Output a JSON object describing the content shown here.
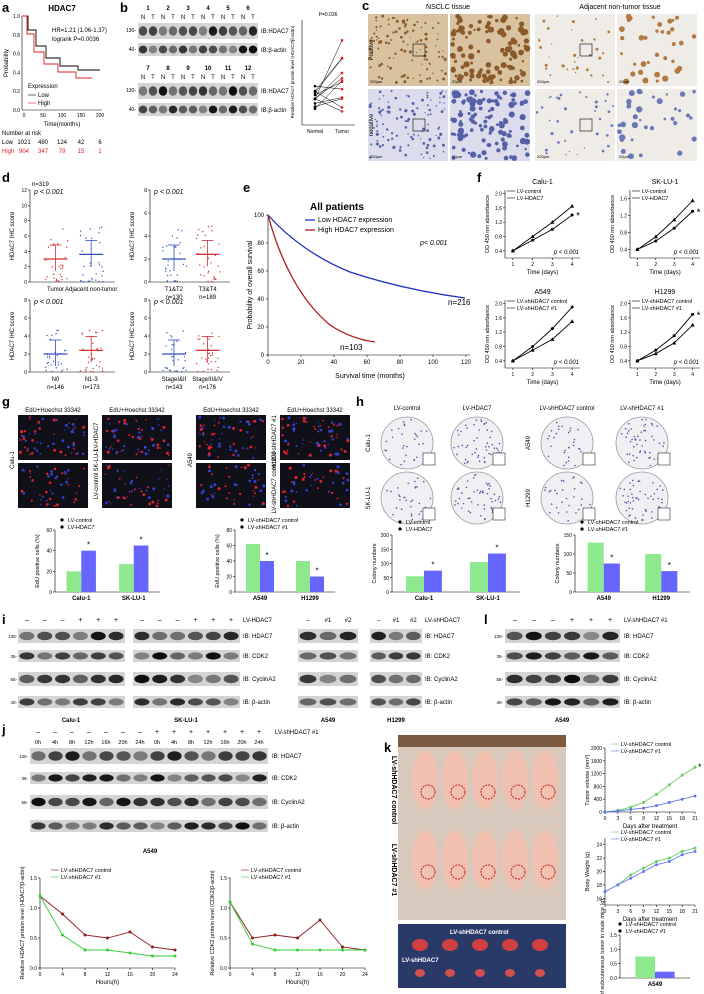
{
  "a": {
    "label": "a",
    "title": "HDAC7",
    "hr": "HR=1.21 (1.06-1.37)",
    "logrank": "logrank P=0.0036",
    "ylabel": "Probability",
    "xlabel": "Time(months)",
    "legend_title": "Expression",
    "legend": [
      "Low",
      "High"
    ],
    "xticks": [
      "0",
      "50",
      "100",
      "150",
      "200"
    ],
    "yticks": [
      "0.0",
      "0.2",
      "0.4",
      "0.6",
      "0.8",
      "1.0"
    ],
    "risk_title": "Number at risk",
    "risk": [
      [
        "Low",
        "1021",
        "480",
        "124",
        "42",
        "6"
      ],
      [
        "High",
        "904",
        "347",
        "79",
        "15",
        "1"
      ]
    ]
  },
  "b": {
    "label": "b",
    "lanes": [
      [
        "1",
        "2",
        "3",
        "4",
        "5",
        "6"
      ],
      [
        "7",
        "8",
        "9",
        "10",
        "11",
        "12"
      ]
    ],
    "n": "N",
    "t": "T",
    "mw": [
      "130-",
      "40-"
    ],
    "bands": [
      "IB:HDAC7",
      "IB:β-actin"
    ],
    "p": "P=0.036",
    "ylabel": "Relative HDAC7 protein level (HDAC7/β-actin)",
    "cats": [
      "Normal",
      "Tumor"
    ]
  },
  "c": {
    "label": "c",
    "headers": [
      "NSCLC tissue",
      "Adjacent non-tumor tissue"
    ],
    "rows": [
      "Positive",
      "negative"
    ],
    "scales": [
      "200μm",
      "20μm"
    ]
  },
  "d": {
    "label": "d",
    "ylabel": "HDAC7 IHC score",
    "p": "p < 0.001",
    "n0": "n=319",
    "plots": [
      {
        "yticks": [
          "0",
          "2",
          "4",
          "6",
          "8",
          "10",
          "12"
        ],
        "cats": [
          "Tumor",
          "Adjacent non-tumor"
        ]
      },
      {
        "yticks": [
          "0",
          "2",
          "4",
          "6",
          "8"
        ],
        "cats": [
          "T1&T2",
          "T3&T4"
        ],
        "n": [
          "n=130",
          "n=189"
        ]
      },
      {
        "yticks": [
          "0",
          "2",
          "4",
          "6",
          "8"
        ],
        "cats": [
          "N0",
          "N1-3"
        ],
        "n": [
          "n=146",
          "n=173"
        ]
      },
      {
        "yticks": [
          "0",
          "2",
          "4",
          "6",
          "8"
        ],
        "cats": [
          "StageI&II",
          "StageIII&IV"
        ],
        "n": [
          "n=143",
          "n=176"
        ]
      }
    ]
  },
  "e": {
    "label": "e",
    "title": "All patients",
    "legend": [
      "Low HDAC7 expression",
      "High HDAC7 expression"
    ],
    "p": "p< 0.001",
    "n": [
      "n=216",
      "n=103"
    ],
    "ylabel": "Probability of overall survival",
    "xlabel": "Survival time (months)",
    "xticks": [
      "0",
      "20",
      "40",
      "60",
      "80",
      "100",
      "120"
    ],
    "yticks": [
      "0",
      "20",
      "40",
      "60",
      "80",
      "100"
    ]
  },
  "f": {
    "label": "f",
    "ylabel": "OD 450 nm absorbance",
    "xlabel": "Time (days)",
    "p": "p < 0.001",
    "star": "*",
    "plots": [
      {
        "type": "line",
        "title": "Calu-1",
        "x": [
          1,
          2,
          3,
          4
        ],
        "xlim": [
          0.6,
          4.4
        ],
        "xticks": [
          1,
          2,
          3,
          4
        ],
        "ylim": [
          0.2,
          2.1
        ],
        "yticks": [
          0.4,
          0.8,
          1.2,
          1.6,
          {
            "value": 2,
            "label": "2.0"
          }
        ],
        "series": [
          {
            "name": "LV-control",
            "color": "#000000",
            "marker": "circle",
            "values": [
              0.4,
              0.7,
              1.0,
              1.4
            ]
          },
          {
            "name": "LV-HDAC7",
            "color": "#000000",
            "marker": "triangle",
            "values": [
              0.4,
              0.8,
              1.2,
              1.65
            ]
          }
        ],
        "star": true
      },
      {
        "type": "line",
        "title": "SK-LU-1",
        "x": [
          1,
          2,
          3,
          4
        ],
        "xlim": [
          0.6,
          4.4
        ],
        "xticks": [
          1,
          2,
          3,
          4
        ],
        "ylim": [
          0.2,
          1.8
        ],
        "yticks": [
          0.4,
          0.8,
          1.2,
          1.6
        ],
        "series": [
          {
            "name": "LV-control",
            "color": "#000000",
            "marker": "circle",
            "values": [
              0.4,
              0.6,
              0.9,
              1.3
            ]
          },
          {
            "name": "LV-HDAC7",
            "color": "#000000",
            "marker": "triangle",
            "values": [
              0.4,
              0.7,
              1.1,
              1.55
            ]
          }
        ],
        "star": true
      },
      {
        "type": "line",
        "title": "A549",
        "x": [
          1,
          2,
          3,
          4
        ],
        "xlim": [
          0.6,
          4.4
        ],
        "xticks": [
          1,
          2,
          3,
          4
        ],
        "ylim": [
          0.2,
          2.1
        ],
        "yticks": [
          0.4,
          0.8,
          1.2,
          1.6,
          {
            "value": 2,
            "label": "2.0"
          }
        ],
        "series": [
          {
            "name": "LV-shHDAC7 control",
            "color": "#000000",
            "marker": "circle",
            "values": [
              0.4,
              0.8,
              1.3,
              1.9
            ]
          },
          {
            "name": "LV-shHDAC7 #1",
            "color": "#000000",
            "marker": "triangle",
            "values": [
              0.4,
              0.7,
              1.0,
              1.5
            ]
          }
        ],
        "star": false
      },
      {
        "type": "line",
        "title": "H1299",
        "x": [
          1,
          2,
          3,
          4
        ],
        "xlim": [
          0.6,
          4.4
        ],
        "xticks": [
          1,
          2,
          3,
          4
        ],
        "ylim": [
          0.2,
          2.1
        ],
        "yticks": [
          0.4,
          0.8,
          1.2,
          1.6,
          {
            "value": 2,
            "label": "2.0"
          }
        ],
        "series": [
          {
            "name": "LV-shHDAC7 control",
            "color": "#000000",
            "marker": "circle",
            "values": [
              0.4,
              0.7,
              1.1,
              1.7
            ]
          },
          {
            "name": "LV-shHDAC7 #1",
            "color": "#000000",
            "marker": "triangle",
            "values": [
              0.4,
              0.6,
              0.9,
              1.4
            ]
          }
        ],
        "star": true
      }
    ]
  },
  "g": {
    "label": "g",
    "img_title": "EdU+Hoechst 33342",
    "cells": [
      "Calu-1",
      "SK-LU-1",
      "A549",
      "H1299"
    ],
    "rows": [
      "LV-HDAC7",
      "LV-control",
      "LV-shHDAC7 #1",
      "LV-shHDAC7 control"
    ],
    "ylabel": "EdU positive cells (%)",
    "star": "*",
    "plots": [
      {
        "type": "bar",
        "categories": [
          "Calu-1",
          "SK-LU-1"
        ],
        "ylim": [
          0,
          60
        ],
        "yticks": [
          0,
          20,
          40,
          60
        ],
        "series": [
          {
            "name": "LV-control",
            "color": "#8ee88e",
            "values": [
              20,
              27
            ]
          },
          {
            "name": "LV-HDAC7",
            "color": "#6666ff",
            "values": [
              40,
              45
            ]
          }
        ]
      },
      {
        "type": "bar",
        "categories": [
          "A549",
          "H1299"
        ],
        "ylim": [
          0,
          80
        ],
        "yticks": [
          0,
          20,
          40,
          60,
          80
        ],
        "series": [
          {
            "name": "LV-shHDAC7 control",
            "color": "#8ee88e",
            "values": [
              62,
              40
            ]
          },
          {
            "name": "LV-shHDAC7 #1",
            "color": "#6666ff",
            "values": [
              40,
              20
            ]
          }
        ]
      }
    ]
  },
  "h": {
    "label": "h",
    "headers": [
      "LV-control",
      "LV-HDAC7",
      "LV-shHDAC7 control",
      "LV-shHDAC7 #1"
    ],
    "cells": [
      "Calu-1",
      "SK-LU-1",
      "A549",
      "H1299"
    ],
    "ylabel": "Colony numbers",
    "star": "*",
    "plots": [
      {
        "type": "bar",
        "categories": [
          "Calu-1",
          "SK-LU-1"
        ],
        "ylim": [
          0,
          200
        ],
        "yticks": [
          0,
          50,
          100,
          150,
          200
        ],
        "series": [
          {
            "name": "LV-control",
            "color": "#8ee88e",
            "values": [
              55,
              105
            ]
          },
          {
            "name": "LV-HDAC7",
            "color": "#6666ff",
            "values": [
              75,
              135
            ]
          }
        ]
      },
      {
        "type": "bar",
        "categories": [
          "A549",
          "H1299"
        ],
        "ylim": [
          0,
          150
        ],
        "yticks": [
          0,
          50,
          100,
          150
        ],
        "series": [
          {
            "name": "LV-shHDAC7 control",
            "color": "#8ee88e",
            "values": [
              130,
              100
            ]
          },
          {
            "name": "LV-shHDAC7 #1",
            "color": "#6666ff",
            "values": [
              75,
              55
            ]
          }
        ]
      }
    ]
  },
  "i": {
    "label": "i",
    "headers": [
      "LV-HDAC7",
      "LV-shHDAC7"
    ],
    "signs": [
      "–",
      "+",
      "#1",
      "#2"
    ],
    "bands": [
      "IB: HDAC7",
      "IB: CDK2",
      "IB: CyclinA2",
      "IB: β-actin"
    ],
    "mw": [
      "130-",
      "35-",
      "55-",
      "40-"
    ],
    "cells": [
      "Calu-1",
      "SK-LU-1",
      "A549",
      "H1299"
    ]
  },
  "l": {
    "label": "l",
    "header": "LV-shHDAC7 #1",
    "signs": [
      "–",
      "+"
    ],
    "bands": [
      "IB: HDAC7",
      "IB: CDK2",
      "IB: CyclinA2",
      "IB: β-actin"
    ],
    "mw": [
      "130-",
      "35-",
      "55-",
      "40-"
    ],
    "cell": "A549"
  },
  "j": {
    "label": "j",
    "header": "LV-shHDAC7 #1",
    "signs": [
      "–",
      "+"
    ],
    "times": [
      "0h",
      "4h",
      "8h",
      "12h",
      "16h",
      "20h",
      "24h"
    ],
    "bands": [
      "IB: HDAC7",
      "IB: CDK2",
      "IB: CyclinA2",
      "IB: β-actin"
    ],
    "mw": [
      "130-",
      "35-",
      "55-"
    ],
    "cell": "A549",
    "xlabel": "Hours(h)",
    "plots": [
      {
        "type": "line",
        "ylabel": "Relative HDAC7 protein level (HDAC7/β-actin)",
        "x": [
          0,
          4,
          8,
          12,
          16,
          20,
          24
        ],
        "xlim": [
          0,
          24
        ],
        "xticks": [
          0,
          4,
          8,
          12,
          16,
          20,
          24
        ],
        "ylim": [
          0,
          1.5
        ],
        "yticks": [
          {
            "value": 0,
            "label": "0.0"
          },
          0.5,
          {
            "value": 1,
            "label": "1.0"
          },
          1.5
        ],
        "series": [
          {
            "name": "LV-shHDAC7 control",
            "color": "#8b1a1a",
            "marker": "circle",
            "values": [
              1.2,
              0.9,
              0.55,
              0.5,
              0.6,
              0.35,
              0.3
            ]
          },
          {
            "name": "LV-shHDAC7 #1",
            "color": "#33cc33",
            "marker": "circle",
            "values": [
              1.2,
              0.55,
              0.3,
              0.3,
              0.25,
              0.2,
              0.2
            ]
          }
        ]
      },
      {
        "type": "line",
        "ylabel": "Relative CDK2 protein level (CDK2/β-actin)",
        "x": [
          0,
          4,
          8,
          12,
          16,
          20,
          24
        ],
        "xlim": [
          0,
          24
        ],
        "xticks": [
          0,
          4,
          8,
          12,
          16,
          20,
          24
        ],
        "ylim": [
          0,
          1.5
        ],
        "yticks": [
          {
            "value": 0,
            "label": "0.0"
          },
          0.5,
          {
            "value": 1,
            "label": "1.0"
          },
          1.5
        ],
        "series": [
          {
            "name": "LV-shHDAC7 control",
            "color": "#8b1a1a",
            "marker": "circle",
            "values": [
              1.1,
              0.5,
              0.55,
              0.5,
              0.8,
              0.35,
              0.3
            ]
          },
          {
            "name": "LV-shHDAC7 #1",
            "color": "#33cc33",
            "marker": "circle",
            "values": [
              1.1,
              0.4,
              0.3,
              0.3,
              0.3,
              0.3,
              0.3
            ]
          }
        ]
      }
    ]
  },
  "k": {
    "label": "k",
    "photo_rows": [
      "LV-shHDAC7 control",
      "LV-shHDAC7 #1"
    ],
    "tumor_rows": [
      "LV-shHDAC7 control",
      "LV-shHDAC7"
    ],
    "xlabel": "Days after treatment",
    "star": "*",
    "plots": [
      {
        "type": "line",
        "ylabel": "Tumor volume (mm³)",
        "x": [
          0,
          3,
          6,
          9,
          12,
          15,
          18,
          21
        ],
        "xlim": [
          0,
          21
        ],
        "xticks": [
          0,
          3,
          6,
          9,
          12,
          15,
          18,
          21
        ],
        "ylim": [
          0,
          2000
        ],
        "yticks": [
          0,
          400,
          800,
          1200,
          1600,
          2000
        ],
        "series": [
          {
            "name": "LV-shHDAC7 control",
            "color": "#66cc66",
            "marker": "circle",
            "values": [
              0,
              50,
              150,
              300,
              550,
              850,
              1150,
              1400
            ]
          },
          {
            "name": "LV-shHDAC7 #1",
            "color": "#6677ee",
            "marker": "circle",
            "values": [
              0,
              30,
              80,
              120,
              200,
              300,
              400,
              500
            ]
          }
        ]
      },
      {
        "type": "line",
        "ylabel": "Body Weight (g)",
        "x": [
          0,
          3,
          6,
          9,
          12,
          15,
          18,
          21
        ],
        "xlim": [
          0,
          21
        ],
        "xticks": [
          0,
          3,
          6,
          9,
          12,
          15,
          18,
          21
        ],
        "ylim": [
          15,
          25
        ],
        "yticks": [
          16,
          18,
          20,
          22,
          24
        ],
        "series": [
          {
            "name": "LV-shHDAC7 control",
            "color": "#66cc66",
            "marker": "circle",
            "values": [
              17,
              18,
              19.5,
              20.5,
              21.5,
              22,
              23,
              23.5
            ]
          },
          {
            "name": "LV-shHDAC7 #1",
            "color": "#6677ee",
            "marker": "circle",
            "values": [
              17,
              18,
              19,
              20,
              21,
              21.5,
              22.5,
              23
            ]
          }
        ]
      },
      {
        "type": "bar",
        "ylabel": "Weight of subcutaneous tumor in nude mice (g)",
        "categories": [
          "A549"
        ],
        "ylim": [
          0,
          1.5
        ],
        "yticks": [
          {
            "value": 0,
            "label": "0.0"
          },
          0.5,
          {
            "value": 1,
            "label": "1.0"
          },
          1.5
        ],
        "series": [
          {
            "name": "LV-shHDAC7 control",
            "color": "#8ee88e",
            "values": [
              0.75
            ]
          },
          {
            "name": "LV-shHDAC7 #1",
            "color": "#6666ff",
            "values": [
              0.22
            ]
          }
        ]
      }
    ]
  }
}
